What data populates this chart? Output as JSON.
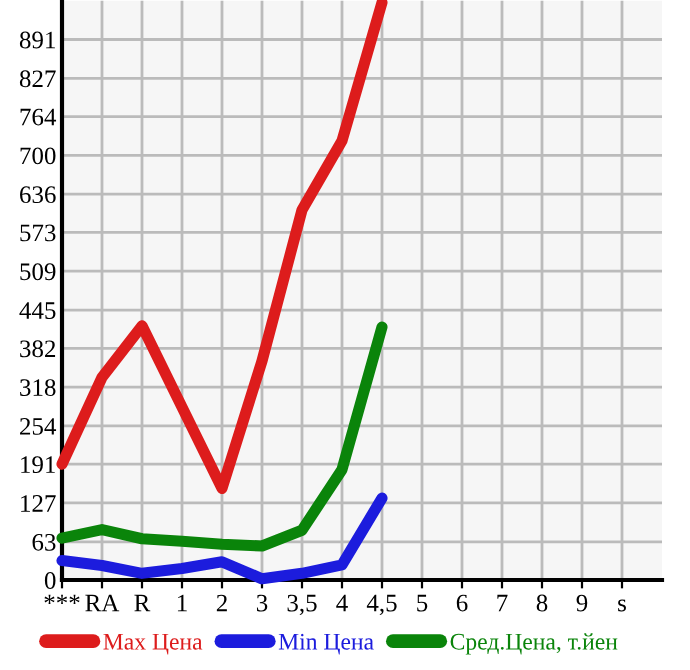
{
  "chart_data": {
    "type": "line",
    "categories": [
      "***",
      "RA",
      "R",
      "1",
      "2",
      "3",
      "3,5",
      "4",
      "4,5",
      "5",
      "6",
      "7",
      "8",
      "9",
      "s"
    ],
    "series": [
      {
        "name": "Max Цена",
        "color": "#dd1c1c",
        "values": [
          191,
          334,
          419,
          285,
          151,
          361,
          610,
          724,
          952,
          null,
          null,
          null,
          null,
          null,
          null
        ]
      },
      {
        "name": "Min Цена",
        "color": "#1c1cdd",
        "values": [
          32,
          24,
          11,
          19,
          30,
          2,
          11,
          25,
          135,
          null,
          null,
          null,
          null,
          null,
          null
        ]
      },
      {
        "name": "Сред.Цена, т.йен",
        "color": "#0a840a",
        "values": [
          69,
          83,
          68,
          64,
          59,
          56,
          82,
          182,
          417,
          null,
          null,
          null,
          null,
          null,
          null
        ]
      }
    ],
    "ylim": [
      0,
      955
    ],
    "yticks": [
      0,
      63,
      127,
      191,
      254,
      318,
      382,
      445,
      509,
      573,
      636,
      700,
      764,
      827,
      891
    ],
    "grid": true,
    "legend": "bottom",
    "marker": "none",
    "line_style": "solid"
  }
}
